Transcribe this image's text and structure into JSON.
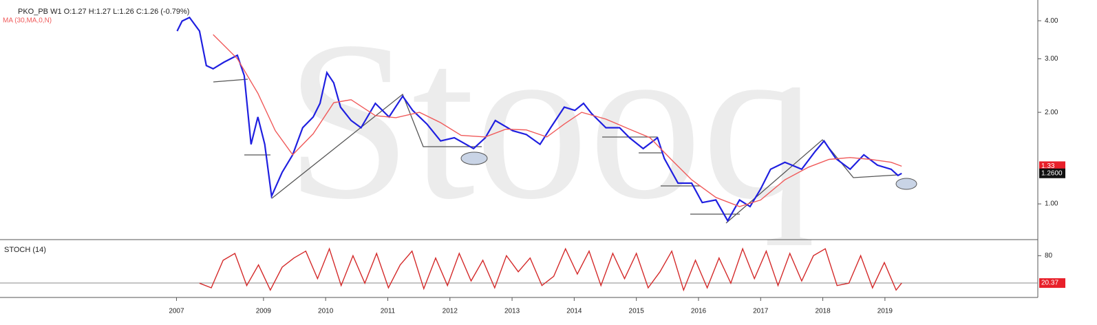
{
  "chart_data": [
    {
      "type": "line",
      "title": "PKO_PB  W1  O:1.27  H:1.27  L:1.26  C:1.26  (-0.79%)",
      "watermark": "Stooq",
      "log_scale": true,
      "xlim": [
        2004.76,
        2021.46
      ],
      "ylim": [
        0.763,
        4.68
      ],
      "xticks": [
        {
          "value": 2007.6,
          "label": "2007"
        },
        2009,
        2010,
        2011,
        2012,
        2013,
        2014,
        2015,
        2016,
        2017,
        2018,
        2019
      ],
      "yticks": [
        {
          "value": 1,
          "label": "1.00"
        },
        {
          "value": 2,
          "label": "2.00"
        },
        {
          "value": 3,
          "label": "3.00"
        },
        {
          "value": 4,
          "label": "4.00"
        }
      ],
      "last_labels": [
        {
          "value": 1.33,
          "label": "1.33",
          "color": "#e8202a"
        },
        {
          "value": 1.26,
          "label": "1.2600",
          "color": "#111111"
        }
      ],
      "series": [
        {
          "color": "#1f1fe0",
          "x": [
            2007.61,
            2007.69,
            2007.81,
            2007.97,
            2008.08,
            2008.19,
            2008.36,
            2008.58,
            2008.69,
            2008.8,
            2008.91,
            2009.02,
            2009.13,
            2009.3,
            2009.47,
            2009.63,
            2009.8,
            2009.91,
            2010.02,
            2010.13,
            2010.24,
            2010.41,
            2010.57,
            2010.8,
            2011.02,
            2011.24,
            2011.4,
            2011.63,
            2011.85,
            2012.07,
            2012.38,
            2012.57,
            2012.73,
            2013.01,
            2013.23,
            2013.45,
            2013.62,
            2013.84,
            2014.01,
            2014.15,
            2014.28,
            2014.51,
            2014.73,
            2014.89,
            2015.11,
            2015.34,
            2015.45,
            2015.67,
            2015.89,
            2016.06,
            2016.28,
            2016.47,
            2016.66,
            2016.83,
            2017.0,
            2017.16,
            2017.39,
            2017.66,
            2017.88,
            2018.02,
            2018.21,
            2018.44,
            2018.66,
            2018.88,
            2019.1,
            2019.21,
            2019.27
          ],
          "values": [
            3.7,
            3.99,
            4.1,
            3.7,
            2.85,
            2.78,
            2.92,
            3.08,
            2.64,
            1.57,
            1.93,
            1.57,
            1.06,
            1.27,
            1.45,
            1.78,
            1.93,
            2.14,
            2.7,
            2.5,
            2.08,
            1.88,
            1.78,
            2.14,
            1.93,
            2.26,
            2.03,
            1.83,
            1.61,
            1.65,
            1.52,
            1.65,
            1.88,
            1.74,
            1.69,
            1.57,
            1.78,
            2.08,
            2.03,
            2.14,
            1.98,
            1.78,
            1.78,
            1.65,
            1.52,
            1.65,
            1.41,
            1.17,
            1.17,
            1.01,
            1.03,
            0.88,
            1.03,
            0.98,
            1.12,
            1.3,
            1.37,
            1.3,
            1.49,
            1.61,
            1.41,
            1.3,
            1.45,
            1.34,
            1.3,
            1.24,
            1.26
          ]
        },
        {
          "name": "MA (30,MA,0,N)",
          "color": "#f05a5a",
          "x": [
            2008.19,
            2008.58,
            2008.91,
            2009.19,
            2009.47,
            2009.8,
            2010.13,
            2010.41,
            2010.8,
            2011.13,
            2011.51,
            2011.85,
            2012.18,
            2012.57,
            2012.9,
            2013.23,
            2013.56,
            2013.84,
            2014.12,
            2014.51,
            2014.89,
            2015.22,
            2015.56,
            2015.89,
            2016.28,
            2016.66,
            2017.0,
            2017.39,
            2017.77,
            2018.1,
            2018.44,
            2018.77,
            2019.1,
            2019.27
          ],
          "values": [
            3.6,
            3.0,
            2.31,
            1.74,
            1.45,
            1.7,
            2.15,
            2.2,
            1.95,
            1.92,
            2.0,
            1.85,
            1.68,
            1.66,
            1.76,
            1.75,
            1.66,
            1.83,
            2.0,
            1.9,
            1.76,
            1.65,
            1.4,
            1.2,
            1.05,
            0.98,
            1.03,
            1.2,
            1.32,
            1.4,
            1.42,
            1.4,
            1.37,
            1.33
          ]
        }
      ]
    },
    {
      "type": "line",
      "title": "STOCH (14)",
      "xlim": [
        2004.76,
        2021.46
      ],
      "ylim": [
        -11,
        112
      ],
      "yticks": [
        80
      ],
      "last_labels": [
        {
          "value": 20.37,
          "label": "20.37",
          "color": "#e8202a"
        }
      ],
      "series": [
        {
          "color": "#d42a2a",
          "x": [
            2007.97,
            2008.16,
            2008.35,
            2008.54,
            2008.73,
            2008.92,
            2009.11,
            2009.3,
            2009.49,
            2009.68,
            2009.87,
            2010.06,
            2010.25,
            2010.44,
            2010.63,
            2010.82,
            2011.01,
            2011.2,
            2011.39,
            2011.58,
            2011.77,
            2011.96,
            2012.15,
            2012.34,
            2012.53,
            2012.72,
            2012.91,
            2013.1,
            2013.29,
            2013.48,
            2013.67,
            2013.86,
            2014.05,
            2014.24,
            2014.43,
            2014.62,
            2014.81,
            2015.0,
            2015.19,
            2015.38,
            2015.57,
            2015.76,
            2015.95,
            2016.14,
            2016.33,
            2016.52,
            2016.71,
            2016.9,
            2017.09,
            2017.28,
            2017.47,
            2017.66,
            2017.85,
            2018.04,
            2018.23,
            2018.42,
            2018.61,
            2018.8,
            2018.99,
            2019.18,
            2019.27
          ],
          "values": [
            20,
            10,
            70,
            85,
            15,
            60,
            5,
            55,
            75,
            90,
            30,
            95,
            15,
            80,
            20,
            85,
            10,
            60,
            90,
            8,
            75,
            15,
            85,
            25,
            70,
            10,
            80,
            45,
            75,
            15,
            35,
            95,
            40,
            90,
            15,
            85,
            30,
            85,
            10,
            45,
            90,
            5,
            70,
            10,
            75,
            20,
            95,
            30,
            90,
            15,
            85,
            25,
            80,
            95,
            15,
            20,
            80,
            10,
            65,
            5,
            20.37
          ]
        }
      ]
    }
  ]
}
